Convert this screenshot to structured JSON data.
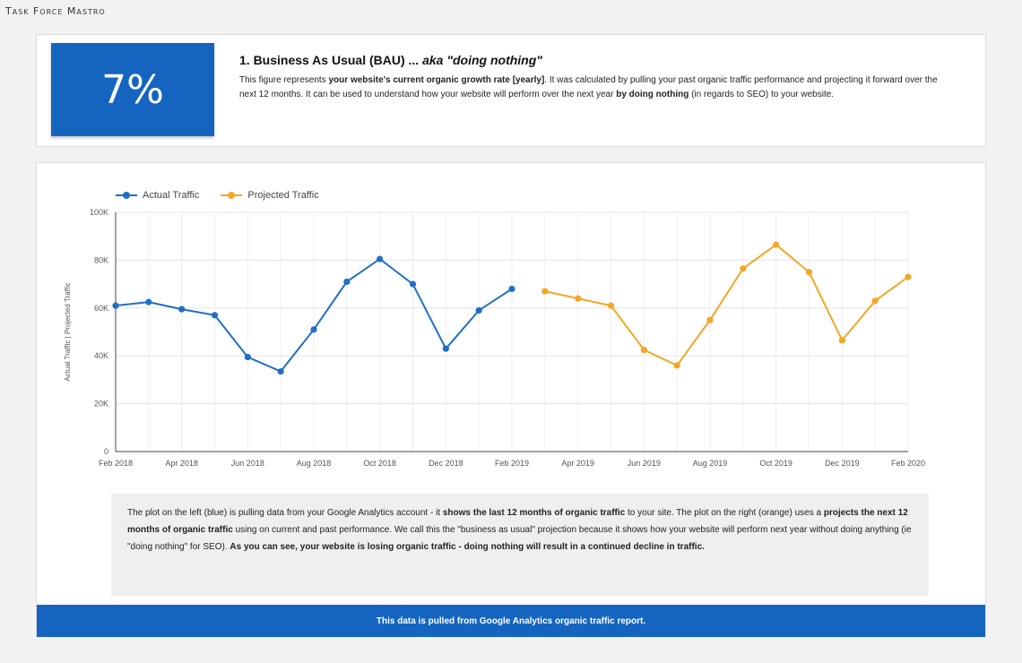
{
  "brand": "Task Force Mastro",
  "kpi": {
    "value": "7%",
    "title_prefix": "1. Business As Usual (BAU) ... ",
    "title_italic": "aka \"doing nothing\"",
    "desc_1": "This figure represents ",
    "desc_b1": "your website's current organic growth rate [yearly]",
    "desc_2": ". It was calculated by pulling your past organic traffic performance and projecting it forward over the next 12 months. It can be used to understand how your website will perform over the next year ",
    "desc_b2": "by doing nothing",
    "desc_3": " (in regards to SEO) to your website."
  },
  "legend": {
    "actual": "Actual Traffic",
    "projected": "Projected Traffic"
  },
  "colors": {
    "accent": "#1565c0",
    "actual": "#1f6fc4",
    "projected": "#f5a623"
  },
  "chart_data": {
    "type": "line",
    "ylabel": "Actual Traffic | Projected Traffic",
    "ylim": [
      0,
      100000
    ],
    "y_ticks": [
      "0",
      "20K",
      "40K",
      "60K",
      "80K",
      "100K"
    ],
    "x_ticks": [
      "Feb 2018",
      "Apr 2018",
      "Jun 2018",
      "Aug 2018",
      "Oct 2018",
      "Dec 2018",
      "Feb 2019",
      "Apr 2019",
      "Jun 2019",
      "Aug 2019",
      "Oct 2019",
      "Dec 2019",
      "Feb 2020"
    ],
    "grid": true,
    "legend_position": "top-left",
    "series": [
      {
        "name": "Actual Traffic",
        "x": [
          "2018-02",
          "2018-03",
          "2018-04",
          "2018-05",
          "2018-06",
          "2018-07",
          "2018-08",
          "2018-09",
          "2018-10",
          "2018-11",
          "2018-12",
          "2019-01",
          "2019-02"
        ],
        "values": [
          61000,
          62500,
          59500,
          57000,
          39500,
          33500,
          51000,
          71000,
          80500,
          70000,
          43000,
          59000,
          68000
        ]
      },
      {
        "name": "Projected Traffic",
        "x": [
          "2019-03",
          "2019-04",
          "2019-05",
          "2019-06",
          "2019-07",
          "2019-08",
          "2019-09",
          "2019-10",
          "2019-11",
          "2019-12",
          "2020-01",
          "2020-02"
        ],
        "values": [
          67000,
          64000,
          61000,
          42500,
          36000,
          55000,
          76500,
          86500,
          75000,
          46500,
          63000,
          73000
        ]
      }
    ]
  },
  "note": {
    "p1": "The plot on the left (blue) is pulling data from your Google Analytics account - it ",
    "b1": "shows the last 12 months of organic traffic",
    "p2": " to your site. The plot on the right (orange) uses a ",
    "b2": "projects the next 12 months of organic traffic",
    "p3": " using on current and past performance.  We call this the \"business as usual\" projection because it shows how your website will perform next year without doing anything (ie \"doing nothing\" for SEO).  ",
    "b3": "As you can see, your website is losing organic traffic - doing nothing will result in a continued decline in traffic."
  },
  "footer": "This data is pulled from Google Analytics organic traffic report."
}
